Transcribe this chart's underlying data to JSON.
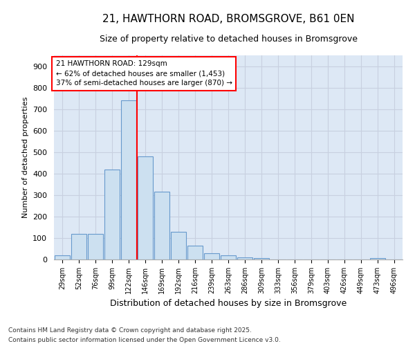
{
  "title_line1": "21, HAWTHORN ROAD, BROMSGROVE, B61 0EN",
  "title_line2": "Size of property relative to detached houses in Bromsgrove",
  "xlabel": "Distribution of detached houses by size in Bromsgrove",
  "ylabel": "Number of detached properties",
  "categories": [
    "29sqm",
    "52sqm",
    "76sqm",
    "99sqm",
    "122sqm",
    "146sqm",
    "169sqm",
    "192sqm",
    "216sqm",
    "239sqm",
    "263sqm",
    "286sqm",
    "309sqm",
    "333sqm",
    "356sqm",
    "379sqm",
    "403sqm",
    "426sqm",
    "449sqm",
    "473sqm",
    "496sqm"
  ],
  "values": [
    20,
    120,
    120,
    420,
    740,
    480,
    315,
    130,
    65,
    30,
    20,
    10,
    8,
    0,
    0,
    0,
    0,
    0,
    0,
    8,
    0
  ],
  "bar_color": "#cce0f0",
  "bar_edge_color": "#6699cc",
  "grid_color": "#c8d0e0",
  "background_color": "#dde8f5",
  "annotation_text": "21 HAWTHORN ROAD: 129sqm\n← 62% of detached houses are smaller (1,453)\n37% of semi-detached houses are larger (870) →",
  "footnote_line1": "Contains HM Land Registry data © Crown copyright and database right 2025.",
  "footnote_line2": "Contains public sector information licensed under the Open Government Licence v3.0.",
  "ylim": [
    0,
    950
  ],
  "yticks": [
    0,
    100,
    200,
    300,
    400,
    500,
    600,
    700,
    800,
    900
  ],
  "title_fontsize": 11,
  "subtitle_fontsize": 9,
  "xlabel_fontsize": 9,
  "ylabel_fontsize": 8
}
